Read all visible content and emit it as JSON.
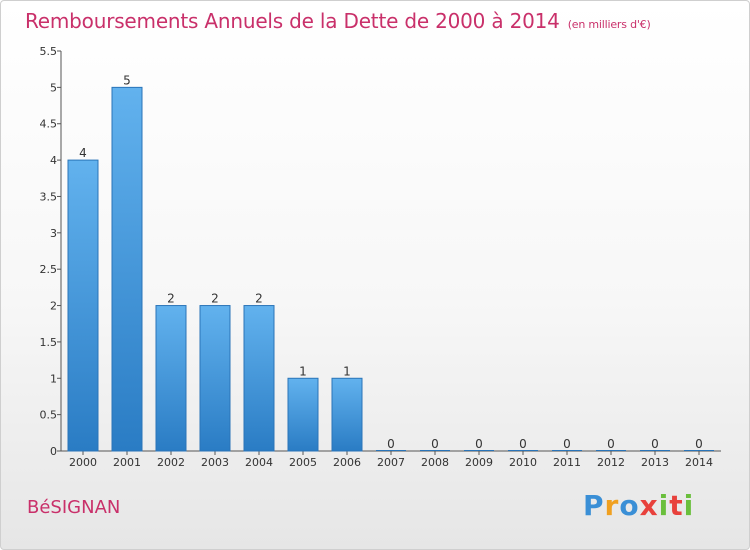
{
  "chart_data": {
    "type": "bar",
    "title": "Remboursements Annuels de la Dette de 2000 à 2014",
    "subtitle": "(en milliers d'€)",
    "categories": [
      "2000",
      "2001",
      "2002",
      "2003",
      "2004",
      "2005",
      "2006",
      "2007",
      "2008",
      "2009",
      "2010",
      "2011",
      "2012",
      "2013",
      "2014"
    ],
    "values": [
      4,
      5,
      2,
      2,
      2,
      1,
      1,
      0,
      0,
      0,
      0,
      0,
      0,
      0,
      0
    ],
    "ylim": [
      0,
      5.5
    ],
    "yticks": [
      "0",
      "0.5",
      "1",
      "1.5",
      "2",
      "2.5",
      "3",
      "3.5",
      "4",
      "4.5",
      "5",
      "5.5"
    ],
    "grid": false,
    "bar_color": "#4a9fe0"
  },
  "footer": {
    "commune": "BéSIGNAN",
    "logo": "Proxiti"
  }
}
